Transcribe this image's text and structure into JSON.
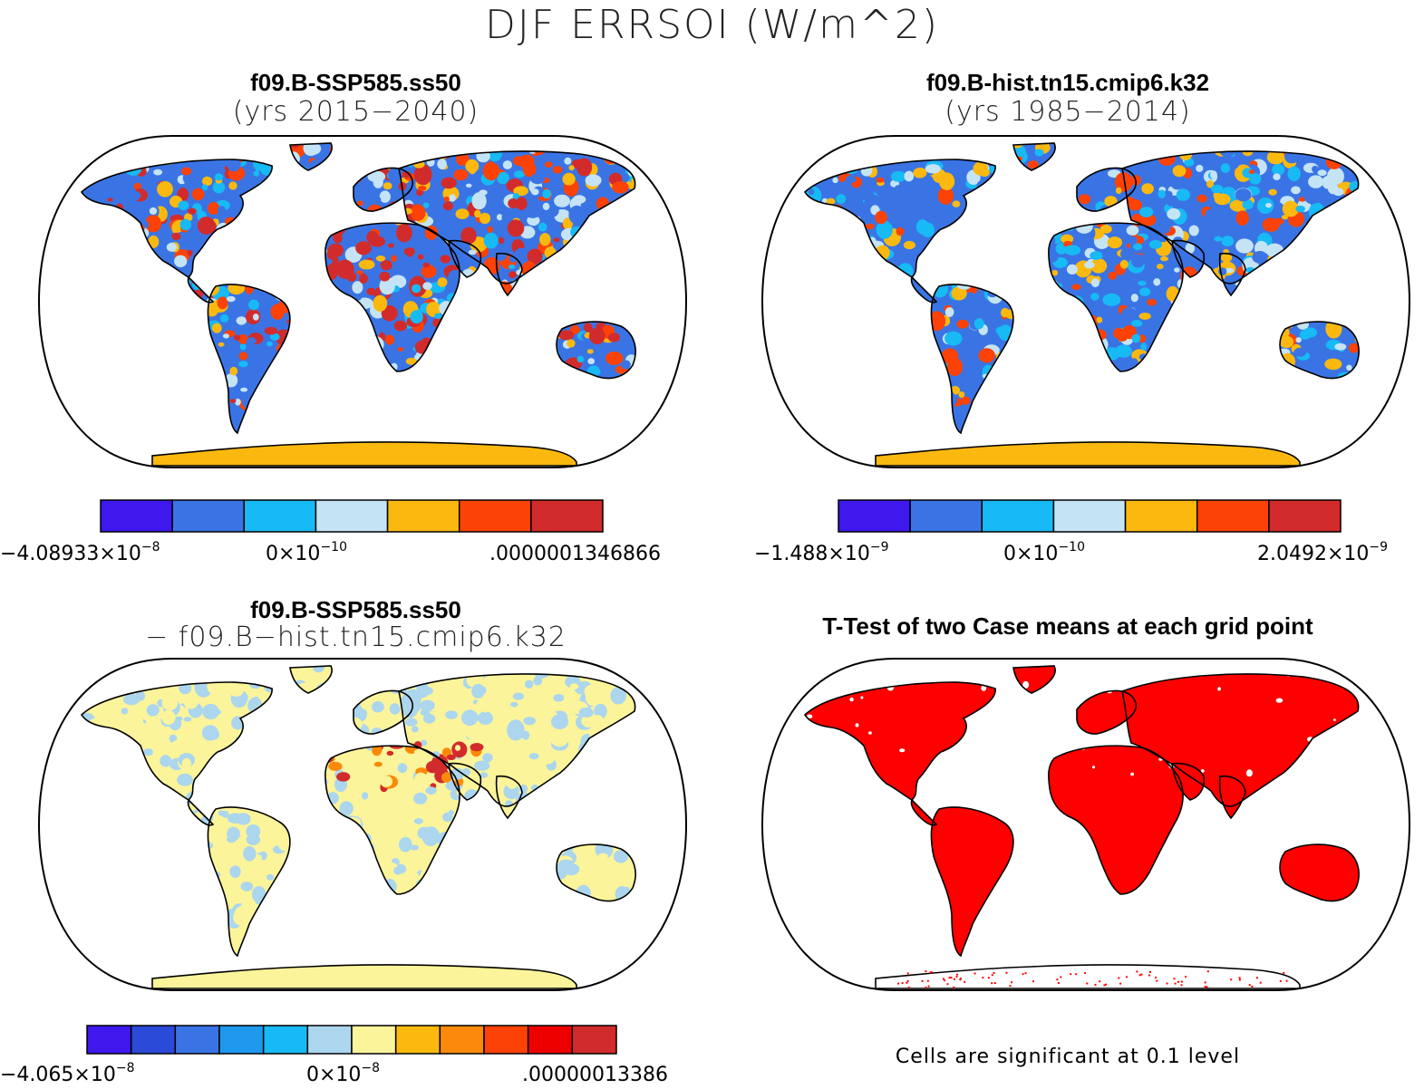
{
  "figure": {
    "title": "DJF ERRSOI (W/m^2)"
  },
  "panels": [
    {
      "id": "case1",
      "title": "f09.B-SSP585.ss50",
      "subtitle": "(yrs 2015−2040)",
      "colorbar": {
        "colors": [
          "#3f18ee",
          "#3a74e4",
          "#17baf4",
          "#c4e4f6",
          "#fbb910",
          "#fc4206",
          "#d22b2b"
        ],
        "labels": [
          {
            "base": "−4.08933×10",
            "exp": "−8"
          },
          {
            "base": "0×10",
            "exp": "−10"
          },
          {
            "base": ".0000001346866",
            "exp": ""
          }
        ]
      }
    },
    {
      "id": "case2",
      "title": "f09.B-hist.tn15.cmip6.k32",
      "subtitle": "(yrs 1985−2014)",
      "colorbar": {
        "colors": [
          "#3f18ee",
          "#3a74e4",
          "#17baf4",
          "#c4e4f6",
          "#fbb910",
          "#fc4206",
          "#d22b2b"
        ],
        "labels": [
          {
            "base": "−1.488×10",
            "exp": "−9"
          },
          {
            "base": "0×10",
            "exp": "−10"
          },
          {
            "base": "2.0492×10",
            "exp": "−9"
          }
        ]
      }
    },
    {
      "id": "difference",
      "title": "f09.B-SSP585.ss50",
      "subtitle": "− f09.B−hist.tn15.cmip6.k32",
      "colorbar": {
        "colors": [
          "#3f18ee",
          "#2b4ad8",
          "#3a74e4",
          "#1e99ee",
          "#17baf4",
          "#acd6ee",
          "#fbf49a",
          "#fbb910",
          "#fb8a0a",
          "#fc4206",
          "#ee0000",
          "#d22b2b"
        ],
        "labels": [
          {
            "base": "−4.065×10",
            "exp": "−8"
          },
          {
            "base": "0×10",
            "exp": "−8"
          },
          {
            "base": ".00000013386",
            "exp": ""
          }
        ]
      }
    },
    {
      "id": "ttest",
      "title": "T-Test of two Case means at each grid point",
      "note": "Cells are significant at 0.1 level",
      "colors": {
        "significant": "#ff0000"
      }
    }
  ],
  "map_style": {
    "land_colors": {
      "case1": [
        "#3a74e4",
        "#17baf4",
        "#c4e4f6",
        "#fbb910",
        "#fc4206",
        "#d22b2b"
      ],
      "case2": [
        "#3a74e4",
        "#17baf4",
        "#c4e4f6",
        "#fbb910",
        "#fc4206"
      ],
      "difference": [
        "#fbf49a",
        "#acd6ee"
      ],
      "ttest": [
        "#ff0000"
      ]
    },
    "antarctica_colors": {
      "case1": "#fbb910",
      "case2": "#fbb910",
      "difference": "#fbf49a",
      "ttest": "#ffffff"
    }
  }
}
